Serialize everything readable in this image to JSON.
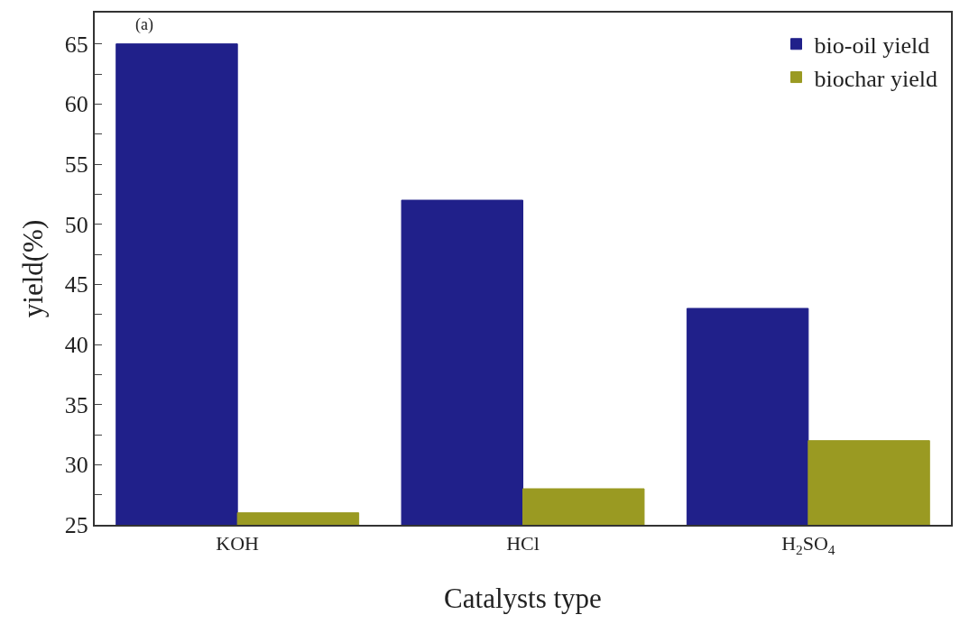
{
  "chart_data": {
    "type": "bar",
    "xlabel": "Catalysts type",
    "ylabel": "yield(%)",
    "annotations": [
      "(a)"
    ],
    "categories": [
      "KOH",
      "HCl",
      "H$_{2}$SO$_{4}$"
    ],
    "series": [
      {
        "name": "bio-oil yield",
        "color": "#20208a",
        "values": [
          65,
          52,
          43
        ]
      },
      {
        "name": "biochar yield",
        "color": "#9a9a22",
        "values": [
          26,
          28,
          32
        ]
      }
    ],
    "ylim": [
      25,
      67.6
    ],
    "yticks": [
      25,
      {
        "value": 27.5,
        "label": null
      },
      30,
      {
        "value": 32.5,
        "label": null
      },
      35,
      {
        "value": 37.5,
        "label": null
      },
      40,
      {
        "value": 42.5,
        "label": null
      },
      45,
      {
        "value": 47.5,
        "label": null
      },
      50,
      {
        "value": 52.5,
        "label": null
      },
      55,
      {
        "value": 57.5,
        "label": null
      },
      60,
      {
        "value": 62.5,
        "label": null
      },
      65
    ],
    "legend": "top right"
  }
}
